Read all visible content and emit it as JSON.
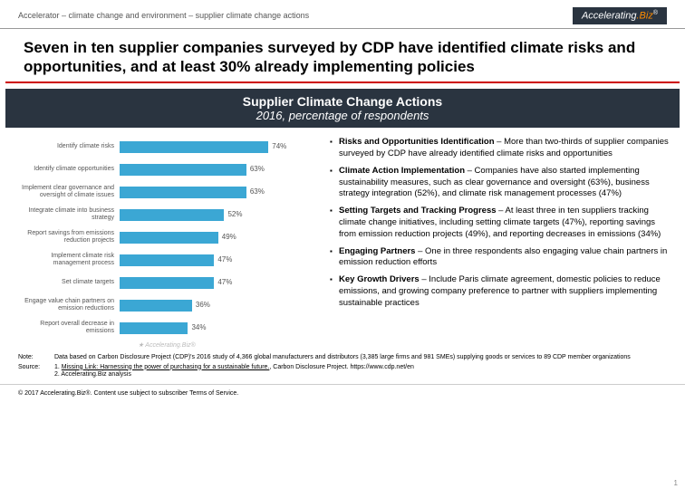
{
  "breadcrumb": "Accelerator – climate change and environment – supplier climate change actions",
  "logo": {
    "part1": "Accelerating",
    "part2": ".Biz",
    "reg": "®"
  },
  "headline": "Seven in ten supplier companies surveyed by CDP have identified climate risks and opportunities, and at least 30% already implementing policies",
  "chart_title_1": "Supplier Climate Change Actions",
  "chart_title_2": "2016, percentage of respondents",
  "chart": {
    "type": "bar",
    "bar_color": "#3ba7d4",
    "label_color": "#555555",
    "value_color": "#555555",
    "background_color": "#ffffff",
    "max": 100,
    "bars": [
      {
        "label": "Identify climate risks",
        "value": 74
      },
      {
        "label": "Identify climate opportunities",
        "value": 63
      },
      {
        "label": "Implement clear governance and oversight of climate issues",
        "value": 63
      },
      {
        "label": "Integrate climate into business strategy",
        "value": 52
      },
      {
        "label": "Report savings from emissions reduction projects",
        "value": 49
      },
      {
        "label": "Implement climate risk management process",
        "value": 47
      },
      {
        "label": "Set climate targets",
        "value": 47
      },
      {
        "label": "Engage value chain partners on emission reductions",
        "value": 36
      },
      {
        "label": "Report overall decrease in emissions",
        "value": 34
      }
    ],
    "watermark": "★ Accelerating.Biz®"
  },
  "bullets": [
    {
      "bold": "Risks and Opportunities Identification",
      "text": " – More than two-thirds of supplier companies surveyed by CDP have already identified climate risks and opportunities"
    },
    {
      "bold": "Climate Action Implementation",
      "text": " – Companies have also started implementing sustainability measures, such as clear governance and oversight (63%), business strategy integration (52%), and climate risk management processes (47%)"
    },
    {
      "bold": "Setting Targets and Tracking Progress",
      "text": " – At least three in ten suppliers tracking climate change initiatives, including setting climate targets (47%), reporting savings from emission reduction projects (49%), and reporting decreases in emissions (34%)"
    },
    {
      "bold": "Engaging Partners",
      "text": " – One in three respondents also engaging value chain partners in emission reduction efforts"
    },
    {
      "bold": "Key Growth Drivers",
      "text": " – Include Paris climate agreement, domestic policies to reduce emissions, and growing company preference to partner with suppliers implementing sustainable practices"
    }
  ],
  "note_label": "Note:",
  "note_text": "Data based on Carbon Disclosure Project (CDP)'s 2016 study of 4,366 global manufacturers and distributors (3,385 large firms and 981 SMEs) supplying goods or services to 89 CDP member organizations",
  "source_label": "Source:",
  "source_line1a": "1. ",
  "source_link": "Missing Link: Harnessing the power of purchasing for a sustainable future.",
  "source_line1b": ", Carbon Disclosure Project. https://www.cdp.net/en",
  "source_line2": "2. Accelerating.Biz analysis",
  "footer": "© 2017 Accelerating.Biz®. Content use subject to subscriber Terms of Service.",
  "page_num": "1"
}
